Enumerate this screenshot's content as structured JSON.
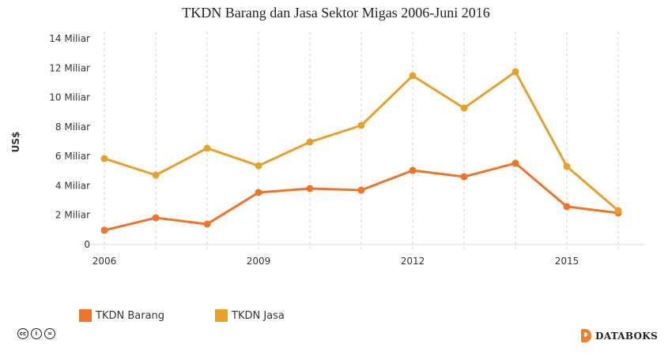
{
  "chart_data": {
    "type": "line",
    "title": "TKDN Barang dan Jasa Sektor Migas 2006-Juni 2016",
    "xlabel": "",
    "ylabel": "US$",
    "x": [
      2006,
      2007,
      2008,
      2009,
      2010,
      2011,
      2012,
      2013,
      2014,
      2015,
      2016
    ],
    "x_tick_labels": [
      "2006",
      "2009",
      "2012",
      "2015"
    ],
    "y_tick_labels": [
      "0",
      "2 Miliar",
      "4 Miliar",
      "6 Miliar",
      "8 Miliar",
      "10 Miliar",
      "12 Miliar",
      "14 Miliar"
    ],
    "ylim": [
      0,
      14
    ],
    "y_unit": "Miliar US$",
    "grid": {
      "vertical": "dashed",
      "horizontal": false
    },
    "legend_position": "bottom-left",
    "series": [
      {
        "name": "TKDN Barang",
        "color": "#f07428",
        "values": [
          0.97,
          1.82,
          1.39,
          3.54,
          3.81,
          3.7,
          5.04,
          4.61,
          5.53,
          2.58,
          2.15
        ]
      },
      {
        "name": "TKDN Jasa",
        "color": "#e6a12b",
        "values": [
          5.85,
          4.72,
          6.55,
          5.36,
          6.97,
          8.1,
          11.48,
          9.28,
          11.75,
          5.31,
          2.31
        ]
      }
    ]
  },
  "legend": [
    {
      "label": "TKDN Barang",
      "color": "#f07428"
    },
    {
      "label": "TKDN Jasa",
      "color": "#e6a12b"
    }
  ],
  "footer": {
    "license_icons": [
      "cc",
      "by",
      "nd"
    ],
    "brand": "DATABOKS"
  }
}
